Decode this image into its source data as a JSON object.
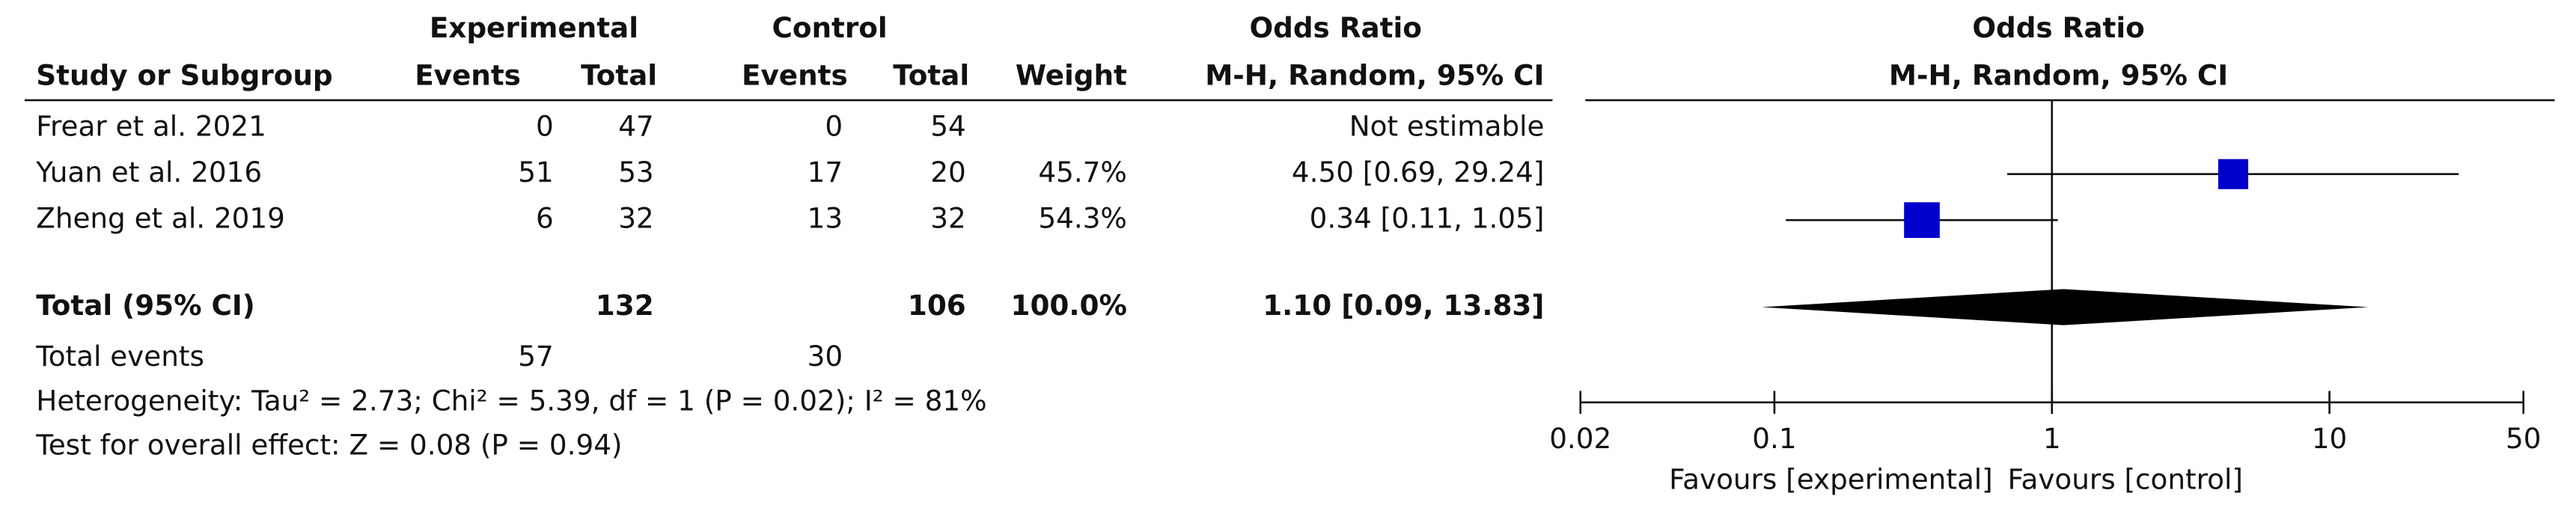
{
  "chart_data": {
    "type": "forest",
    "header": {
      "group_experimental": "Experimental",
      "group_control": "Control",
      "or_title": "Odds Ratio",
      "study": "Study or Subgroup",
      "exp_events": "Events",
      "exp_total": "Total",
      "ctrl_events": "Events",
      "ctrl_total": "Total",
      "weight": "Weight",
      "or_method": "M-H, Random, 95% CI"
    },
    "plot_title": "Odds Ratio",
    "plot_subtitle": "M-H, Random, 95% CI",
    "studies": [
      {
        "name": "Frear et al. 2021",
        "exp_events": 0,
        "exp_total": 47,
        "ctrl_events": 0,
        "ctrl_total": 54,
        "weight": null,
        "or_label": "Not estimable",
        "or": null,
        "ci": null
      },
      {
        "name": "Yuan et al. 2016",
        "exp_events": 51,
        "exp_total": 53,
        "ctrl_events": 17,
        "ctrl_total": 20,
        "weight": {
          "value": 45.7,
          "label": "45.7%"
        },
        "or_label": "4.50 [0.69, 29.24]",
        "or": 4.5,
        "ci": [
          0.69,
          29.24
        ]
      },
      {
        "name": "Zheng et al. 2019",
        "exp_events": 6,
        "exp_total": 32,
        "ctrl_events": 13,
        "ctrl_total": 32,
        "weight": {
          "value": 54.3,
          "label": "54.3%"
        },
        "or_label": "0.34 [0.11, 1.05]",
        "or": 0.34,
        "ci": [
          0.11,
          1.05
        ]
      }
    ],
    "total": {
      "name": "Total (95% CI)",
      "exp_total": 132,
      "ctrl_total": 106,
      "weight": {
        "value": 100,
        "label": "100.0%"
      },
      "or_label": "1.10 [0.09, 13.83]",
      "or": 1.1,
      "ci": [
        0.09,
        13.83
      ]
    },
    "total_events": {
      "name": "Total events",
      "exp": 57,
      "ctrl": 30
    },
    "heterogeneity": "Heterogeneity: Tau² = 2.73; Chi² = 5.39, df = 1 (P = 0.02); I² = 81%",
    "overall_effect": "Test for overall effect: Z = 0.08 (P = 0.94)",
    "xlim": [
      0.02,
      50
    ],
    "xticks": [
      0.02,
      0.1,
      1,
      10,
      50
    ],
    "log_scale": true,
    "xlabel_left": "Favours [experimental]",
    "xlabel_right": "Favours [control]",
    "marker_color": "#0000cc"
  }
}
